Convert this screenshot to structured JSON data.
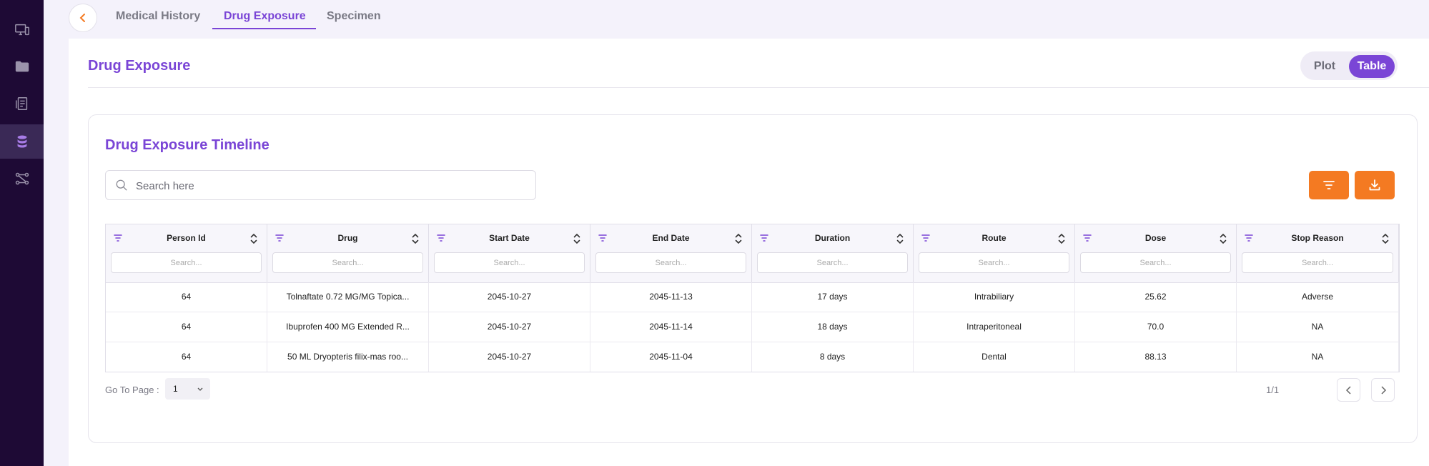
{
  "sidebar": {
    "items": [
      {
        "icon": "devices-icon"
      },
      {
        "icon": "folder-icon"
      },
      {
        "icon": "document-icon"
      },
      {
        "icon": "database-icon",
        "active": true
      },
      {
        "icon": "workflow-icon"
      }
    ]
  },
  "tabs": [
    {
      "label": "Medical History"
    },
    {
      "label": "Drug Exposure",
      "active": true
    },
    {
      "label": "Specimen"
    }
  ],
  "page": {
    "title": "Drug Exposure",
    "view_toggle": {
      "plot": "Plot",
      "table": "Table",
      "selected": "Table"
    }
  },
  "card": {
    "title": "Drug Exposure Timeline",
    "search_placeholder": "Search here"
  },
  "table": {
    "filter_placeholder": "Search...",
    "columns": [
      "Person Id",
      "Drug",
      "Start Date",
      "End Date",
      "Duration",
      "Route",
      "Dose",
      "Stop Reason"
    ],
    "rows": [
      [
        "64",
        "Tolnaftate 0.72 MG/MG Topica...",
        "2045-10-27",
        "2045-11-13",
        "17 days",
        "Intrabiliary",
        "25.62",
        "Adverse"
      ],
      [
        "64",
        "Ibuprofen 400 MG Extended R...",
        "2045-10-27",
        "2045-11-14",
        "18 days",
        "Intraperitoneal",
        "70.0",
        "NA"
      ],
      [
        "64",
        "50 ML Dryopteris filix-mas roo...",
        "2045-10-27",
        "2045-11-04",
        "8 days",
        "Dental",
        "88.13",
        "NA"
      ]
    ]
  },
  "pagination": {
    "goto_label": "Go To Page :",
    "page_value": "1",
    "page_count": "1/1"
  },
  "colors": {
    "accent": "#7a45d6",
    "orange": "#f47a22",
    "sidebar_bg": "#1e0a35"
  }
}
